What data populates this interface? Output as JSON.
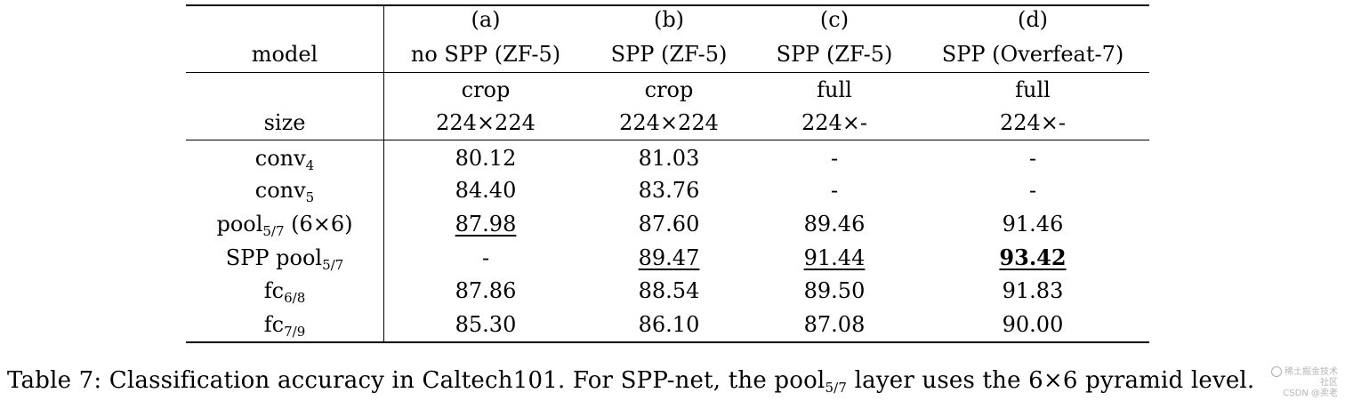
{
  "table": {
    "header": {
      "model_label": "model",
      "size_label": "size",
      "columns": [
        {
          "letter": "(a)",
          "method": "no SPP (ZF-5)",
          "crop": "crop",
          "size": "224×224"
        },
        {
          "letter": "(b)",
          "method": "SPP (ZF-5)",
          "crop": "crop",
          "size": "224×224"
        },
        {
          "letter": "(c)",
          "method": "SPP (ZF-5)",
          "crop": "full",
          "size": "224×-"
        },
        {
          "letter": "(d)",
          "method": "SPP (Overfeat-7)",
          "crop": "full",
          "size": "224×-"
        }
      ]
    },
    "rows": [
      {
        "label": {
          "pre": "conv",
          "sub": "4",
          "post": ""
        },
        "cells": [
          {
            "v": "80.12"
          },
          {
            "v": "81.03"
          },
          {
            "v": "-"
          },
          {
            "v": "-"
          }
        ]
      },
      {
        "label": {
          "pre": "conv",
          "sub": "5",
          "post": ""
        },
        "cells": [
          {
            "v": "84.40"
          },
          {
            "v": "83.76"
          },
          {
            "v": "-"
          },
          {
            "v": "-"
          }
        ]
      },
      {
        "label": {
          "pre": "pool",
          "sub": "5/7",
          "post": " (6×6)"
        },
        "cells": [
          {
            "v": "87.98",
            "underline": true
          },
          {
            "v": "87.60"
          },
          {
            "v": "89.46"
          },
          {
            "v": "91.46"
          }
        ]
      },
      {
        "label": {
          "pre": "SPP pool",
          "sub": "5/7",
          "post": ""
        },
        "cells": [
          {
            "v": "-"
          },
          {
            "v": "89.47",
            "underline": true
          },
          {
            "v": "91.44",
            "underline": true
          },
          {
            "v": "93.42",
            "underline": true,
            "bold": true
          }
        ]
      },
      {
        "label": {
          "pre": "fc",
          "sub": "6/8",
          "post": ""
        },
        "cells": [
          {
            "v": "87.86"
          },
          {
            "v": "88.54"
          },
          {
            "v": "89.50"
          },
          {
            "v": "91.83"
          }
        ]
      },
      {
        "label": {
          "pre": "fc",
          "sub": "7/9",
          "post": ""
        },
        "cells": [
          {
            "v": "85.30"
          },
          {
            "v": "86.10"
          },
          {
            "v": "87.08"
          },
          {
            "v": "90.00"
          }
        ]
      }
    ]
  },
  "caption": {
    "prefix": "Table 7: Classification accuracy in Caltech101. For SPP-net, the pool",
    "sub": "5/7",
    "suffix": " layer uses the 6×6 pyramid level."
  },
  "watermark": {
    "line1": "稀土掘金技术社区",
    "line2": "CSDN @卖老"
  }
}
